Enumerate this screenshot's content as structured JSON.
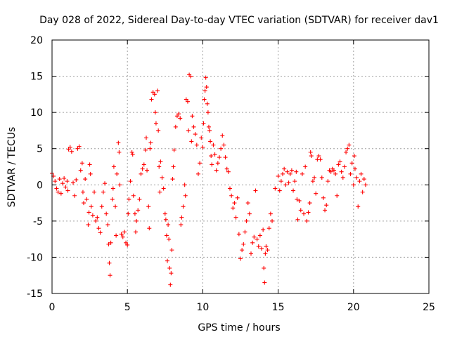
{
  "chart_data": {
    "type": "scatter",
    "title": "Day 028 of 2022, Sidereal Day-to-day VTEC variation (SDTVAR) for receiver dav1",
    "xlabel": "GPS time / hours",
    "ylabel": "SDTVAR / TECUs",
    "xlim": [
      0,
      25
    ],
    "ylim": [
      -15,
      20
    ],
    "xticks": [
      0,
      5,
      10,
      15,
      20,
      25
    ],
    "xtick_labels": [
      "0",
      "5",
      "10",
      "15",
      "20",
      "25"
    ],
    "yticks": [
      -15,
      -10,
      -5,
      0,
      5,
      10,
      15,
      20
    ],
    "ytick_labels": [
      "-15",
      "-10",
      "-5",
      "0",
      "5",
      "10",
      "15",
      "20"
    ],
    "grid": true,
    "marker": "+",
    "series": [
      {
        "name": "SDTVAR",
        "color": "#ff0000",
        "points": [
          [
            0.0,
            1.6
          ],
          [
            0.1,
            1.2
          ],
          [
            0.2,
            0.5
          ],
          [
            0.3,
            -0.5
          ],
          [
            0.4,
            -1.0
          ],
          [
            0.5,
            0.8
          ],
          [
            0.6,
            -1.2
          ],
          [
            0.7,
            0.2
          ],
          [
            0.8,
            0.9
          ],
          [
            0.9,
            -0.3
          ],
          [
            1.0,
            0.5
          ],
          [
            1.05,
            -0.8
          ],
          [
            1.1,
            4.9
          ],
          [
            1.2,
            5.2
          ],
          [
            1.3,
            4.6
          ],
          [
            1.4,
            0.3
          ],
          [
            1.5,
            -1.5
          ],
          [
            1.6,
            0.7
          ],
          [
            1.7,
            5.0
          ],
          [
            1.8,
            5.3
          ],
          [
            1.9,
            2.0
          ],
          [
            2.0,
            3.0
          ],
          [
            2.05,
            -1.0
          ],
          [
            2.1,
            -2.5
          ],
          [
            2.2,
            0.8
          ],
          [
            2.3,
            -2.0
          ],
          [
            2.4,
            -5.5
          ],
          [
            2.45,
            -3.8
          ],
          [
            2.5,
            2.8
          ],
          [
            2.55,
            1.5
          ],
          [
            2.6,
            -3.0
          ],
          [
            2.7,
            -4.2
          ],
          [
            2.8,
            -1.0
          ],
          [
            2.9,
            -5.0
          ],
          [
            3.0,
            -4.5
          ],
          [
            3.1,
            -6.0
          ],
          [
            3.2,
            -6.6
          ],
          [
            3.3,
            -3.0
          ],
          [
            3.4,
            -1.0
          ],
          [
            3.5,
            0.2
          ],
          [
            3.6,
            -4.0
          ],
          [
            3.7,
            -5.5
          ],
          [
            3.75,
            -8.2
          ],
          [
            3.8,
            -10.8
          ],
          [
            3.85,
            -12.5
          ],
          [
            3.9,
            -8.0
          ],
          [
            4.0,
            -2.0
          ],
          [
            4.05,
            -0.5
          ],
          [
            4.1,
            2.5
          ],
          [
            4.2,
            -3.0
          ],
          [
            4.25,
            -7.0
          ],
          [
            4.3,
            1.5
          ],
          [
            4.4,
            5.8
          ],
          [
            4.45,
            4.5
          ],
          [
            4.5,
            0.0
          ],
          [
            4.6,
            -6.8
          ],
          [
            4.7,
            -7.2
          ],
          [
            4.8,
            -6.5
          ],
          [
            4.9,
            -8.0
          ],
          [
            5.0,
            -8.3
          ],
          [
            5.05,
            -4.0
          ],
          [
            5.1,
            -2.0
          ],
          [
            5.2,
            0.5
          ],
          [
            5.3,
            4.5
          ],
          [
            5.35,
            4.2
          ],
          [
            5.4,
            -1.5
          ],
          [
            5.5,
            -4.0
          ],
          [
            5.55,
            -6.5
          ],
          [
            5.6,
            -5.0
          ],
          [
            5.7,
            -3.5
          ],
          [
            5.8,
            -2.0
          ],
          [
            5.9,
            1.5
          ],
          [
            6.0,
            2.2
          ],
          [
            6.1,
            2.8
          ],
          [
            6.2,
            4.8
          ],
          [
            6.25,
            6.5
          ],
          [
            6.3,
            2.0
          ],
          [
            6.4,
            -3.0
          ],
          [
            6.45,
            -6.0
          ],
          [
            6.5,
            5.0
          ],
          [
            6.55,
            5.8
          ],
          [
            6.6,
            11.8
          ],
          [
            6.7,
            12.8
          ],
          [
            6.8,
            12.5
          ],
          [
            6.85,
            10.0
          ],
          [
            6.9,
            8.5
          ],
          [
            7.0,
            13.0
          ],
          [
            7.05,
            7.5
          ],
          [
            7.1,
            2.5
          ],
          [
            7.15,
            -1.0
          ],
          [
            7.2,
            3.2
          ],
          [
            7.3,
            1.0
          ],
          [
            7.4,
            -0.5
          ],
          [
            7.5,
            -4.0
          ],
          [
            7.55,
            -4.8
          ],
          [
            7.6,
            -7.0
          ],
          [
            7.65,
            -10.5
          ],
          [
            7.7,
            -5.5
          ],
          [
            7.75,
            -7.5
          ],
          [
            7.8,
            -11.5
          ],
          [
            7.85,
            -13.8
          ],
          [
            7.9,
            -12.2
          ],
          [
            7.95,
            -9.0
          ],
          [
            8.0,
            0.8
          ],
          [
            8.05,
            2.5
          ],
          [
            8.1,
            4.8
          ],
          [
            8.2,
            8.0
          ],
          [
            8.3,
            9.5
          ],
          [
            8.4,
            9.8
          ],
          [
            8.5,
            9.2
          ],
          [
            8.55,
            -5.5
          ],
          [
            8.6,
            -4.5
          ],
          [
            8.7,
            -3.0
          ],
          [
            8.8,
            0.0
          ],
          [
            8.85,
            -1.5
          ],
          [
            8.9,
            11.8
          ],
          [
            9.0,
            11.5
          ],
          [
            9.05,
            7.5
          ],
          [
            9.1,
            15.2
          ],
          [
            9.2,
            15.0
          ],
          [
            9.25,
            6.0
          ],
          [
            9.3,
            9.5
          ],
          [
            9.4,
            8.0
          ],
          [
            9.5,
            7.0
          ],
          [
            9.6,
            5.5
          ],
          [
            9.7,
            1.5
          ],
          [
            9.8,
            3.0
          ],
          [
            9.9,
            6.5
          ],
          [
            10.0,
            5.2
          ],
          [
            10.05,
            8.5
          ],
          [
            10.1,
            11.8
          ],
          [
            10.15,
            13.0
          ],
          [
            10.2,
            14.8
          ],
          [
            10.25,
            13.5
          ],
          [
            10.3,
            11.2
          ],
          [
            10.35,
            10.0
          ],
          [
            10.4,
            8.0
          ],
          [
            10.45,
            7.5
          ],
          [
            10.5,
            6.0
          ],
          [
            10.55,
            4.0
          ],
          [
            10.6,
            2.8
          ],
          [
            10.7,
            5.5
          ],
          [
            10.8,
            4.2
          ],
          [
            10.9,
            2.0
          ],
          [
            11.0,
            3.0
          ],
          [
            11.1,
            3.8
          ],
          [
            11.2,
            5.0
          ],
          [
            11.3,
            6.8
          ],
          [
            11.4,
            5.5
          ],
          [
            11.5,
            3.8
          ],
          [
            11.6,
            2.2
          ],
          [
            11.7,
            1.8
          ],
          [
            11.8,
            -0.5
          ],
          [
            11.9,
            -1.5
          ],
          [
            12.0,
            -3.2
          ],
          [
            12.1,
            -2.5
          ],
          [
            12.2,
            -4.5
          ],
          [
            12.3,
            -1.8
          ],
          [
            12.4,
            -6.8
          ],
          [
            12.5,
            -10.2
          ],
          [
            12.6,
            -9.0
          ],
          [
            12.7,
            -8.2
          ],
          [
            12.8,
            -6.5
          ],
          [
            12.9,
            -5.0
          ],
          [
            13.0,
            -2.5
          ],
          [
            13.1,
            -4.0
          ],
          [
            13.2,
            -9.5
          ],
          [
            13.3,
            -8.0
          ],
          [
            13.4,
            -7.2
          ],
          [
            13.5,
            -0.8
          ],
          [
            13.6,
            -7.5
          ],
          [
            13.7,
            -8.5
          ],
          [
            13.8,
            -7.0
          ],
          [
            13.9,
            -8.8
          ],
          [
            14.0,
            -6.2
          ],
          [
            14.05,
            -11.5
          ],
          [
            14.1,
            -13.5
          ],
          [
            14.15,
            -9.5
          ],
          [
            14.2,
            -8.5
          ],
          [
            14.3,
            -9.0
          ],
          [
            14.4,
            -6.0
          ],
          [
            14.5,
            -4.0
          ],
          [
            14.6,
            -5.0
          ],
          [
            14.8,
            -0.5
          ],
          [
            15.0,
            1.2
          ],
          [
            15.1,
            -0.8
          ],
          [
            15.2,
            0.5
          ],
          [
            15.3,
            1.5
          ],
          [
            15.4,
            2.2
          ],
          [
            15.5,
            0.0
          ],
          [
            15.6,
            1.8
          ],
          [
            15.7,
            0.3
          ],
          [
            15.8,
            1.5
          ],
          [
            15.9,
            2.0
          ],
          [
            16.0,
            -0.8
          ],
          [
            16.1,
            0.5
          ],
          [
            16.2,
            1.8
          ],
          [
            16.25,
            -2.0
          ],
          [
            16.3,
            -4.8
          ],
          [
            16.4,
            -2.2
          ],
          [
            16.5,
            -3.5
          ],
          [
            16.6,
            1.5
          ],
          [
            16.7,
            -4.0
          ],
          [
            16.8,
            2.5
          ],
          [
            16.9,
            -5.0
          ],
          [
            17.0,
            -3.8
          ],
          [
            17.1,
            -2.5
          ],
          [
            17.15,
            4.5
          ],
          [
            17.2,
            4.0
          ],
          [
            17.3,
            0.5
          ],
          [
            17.4,
            1.0
          ],
          [
            17.5,
            -1.2
          ],
          [
            17.6,
            3.5
          ],
          [
            17.7,
            4.0
          ],
          [
            17.8,
            3.5
          ],
          [
            17.9,
            1.0
          ],
          [
            18.0,
            -1.8
          ],
          [
            18.1,
            -3.5
          ],
          [
            18.2,
            -2.8
          ],
          [
            18.3,
            0.5
          ],
          [
            18.4,
            2.0
          ],
          [
            18.5,
            1.8
          ],
          [
            18.6,
            2.2
          ],
          [
            18.7,
            2.0
          ],
          [
            18.8,
            1.5
          ],
          [
            18.9,
            -1.5
          ],
          [
            19.0,
            2.8
          ],
          [
            19.1,
            3.2
          ],
          [
            19.2,
            1.8
          ],
          [
            19.3,
            1.0
          ],
          [
            19.4,
            2.5
          ],
          [
            19.5,
            4.5
          ],
          [
            19.6,
            5.0
          ],
          [
            19.7,
            5.5
          ],
          [
            19.8,
            1.5
          ],
          [
            19.9,
            3.0
          ],
          [
            20.0,
            0.0
          ],
          [
            20.05,
            4.0
          ],
          [
            20.1,
            2.2
          ],
          [
            20.2,
            1.0
          ],
          [
            20.3,
            -3.0
          ],
          [
            20.4,
            0.5
          ],
          [
            20.5,
            1.5
          ],
          [
            20.6,
            -1.0
          ],
          [
            20.7,
            0.8
          ],
          [
            20.8,
            0.0
          ]
        ]
      }
    ]
  }
}
